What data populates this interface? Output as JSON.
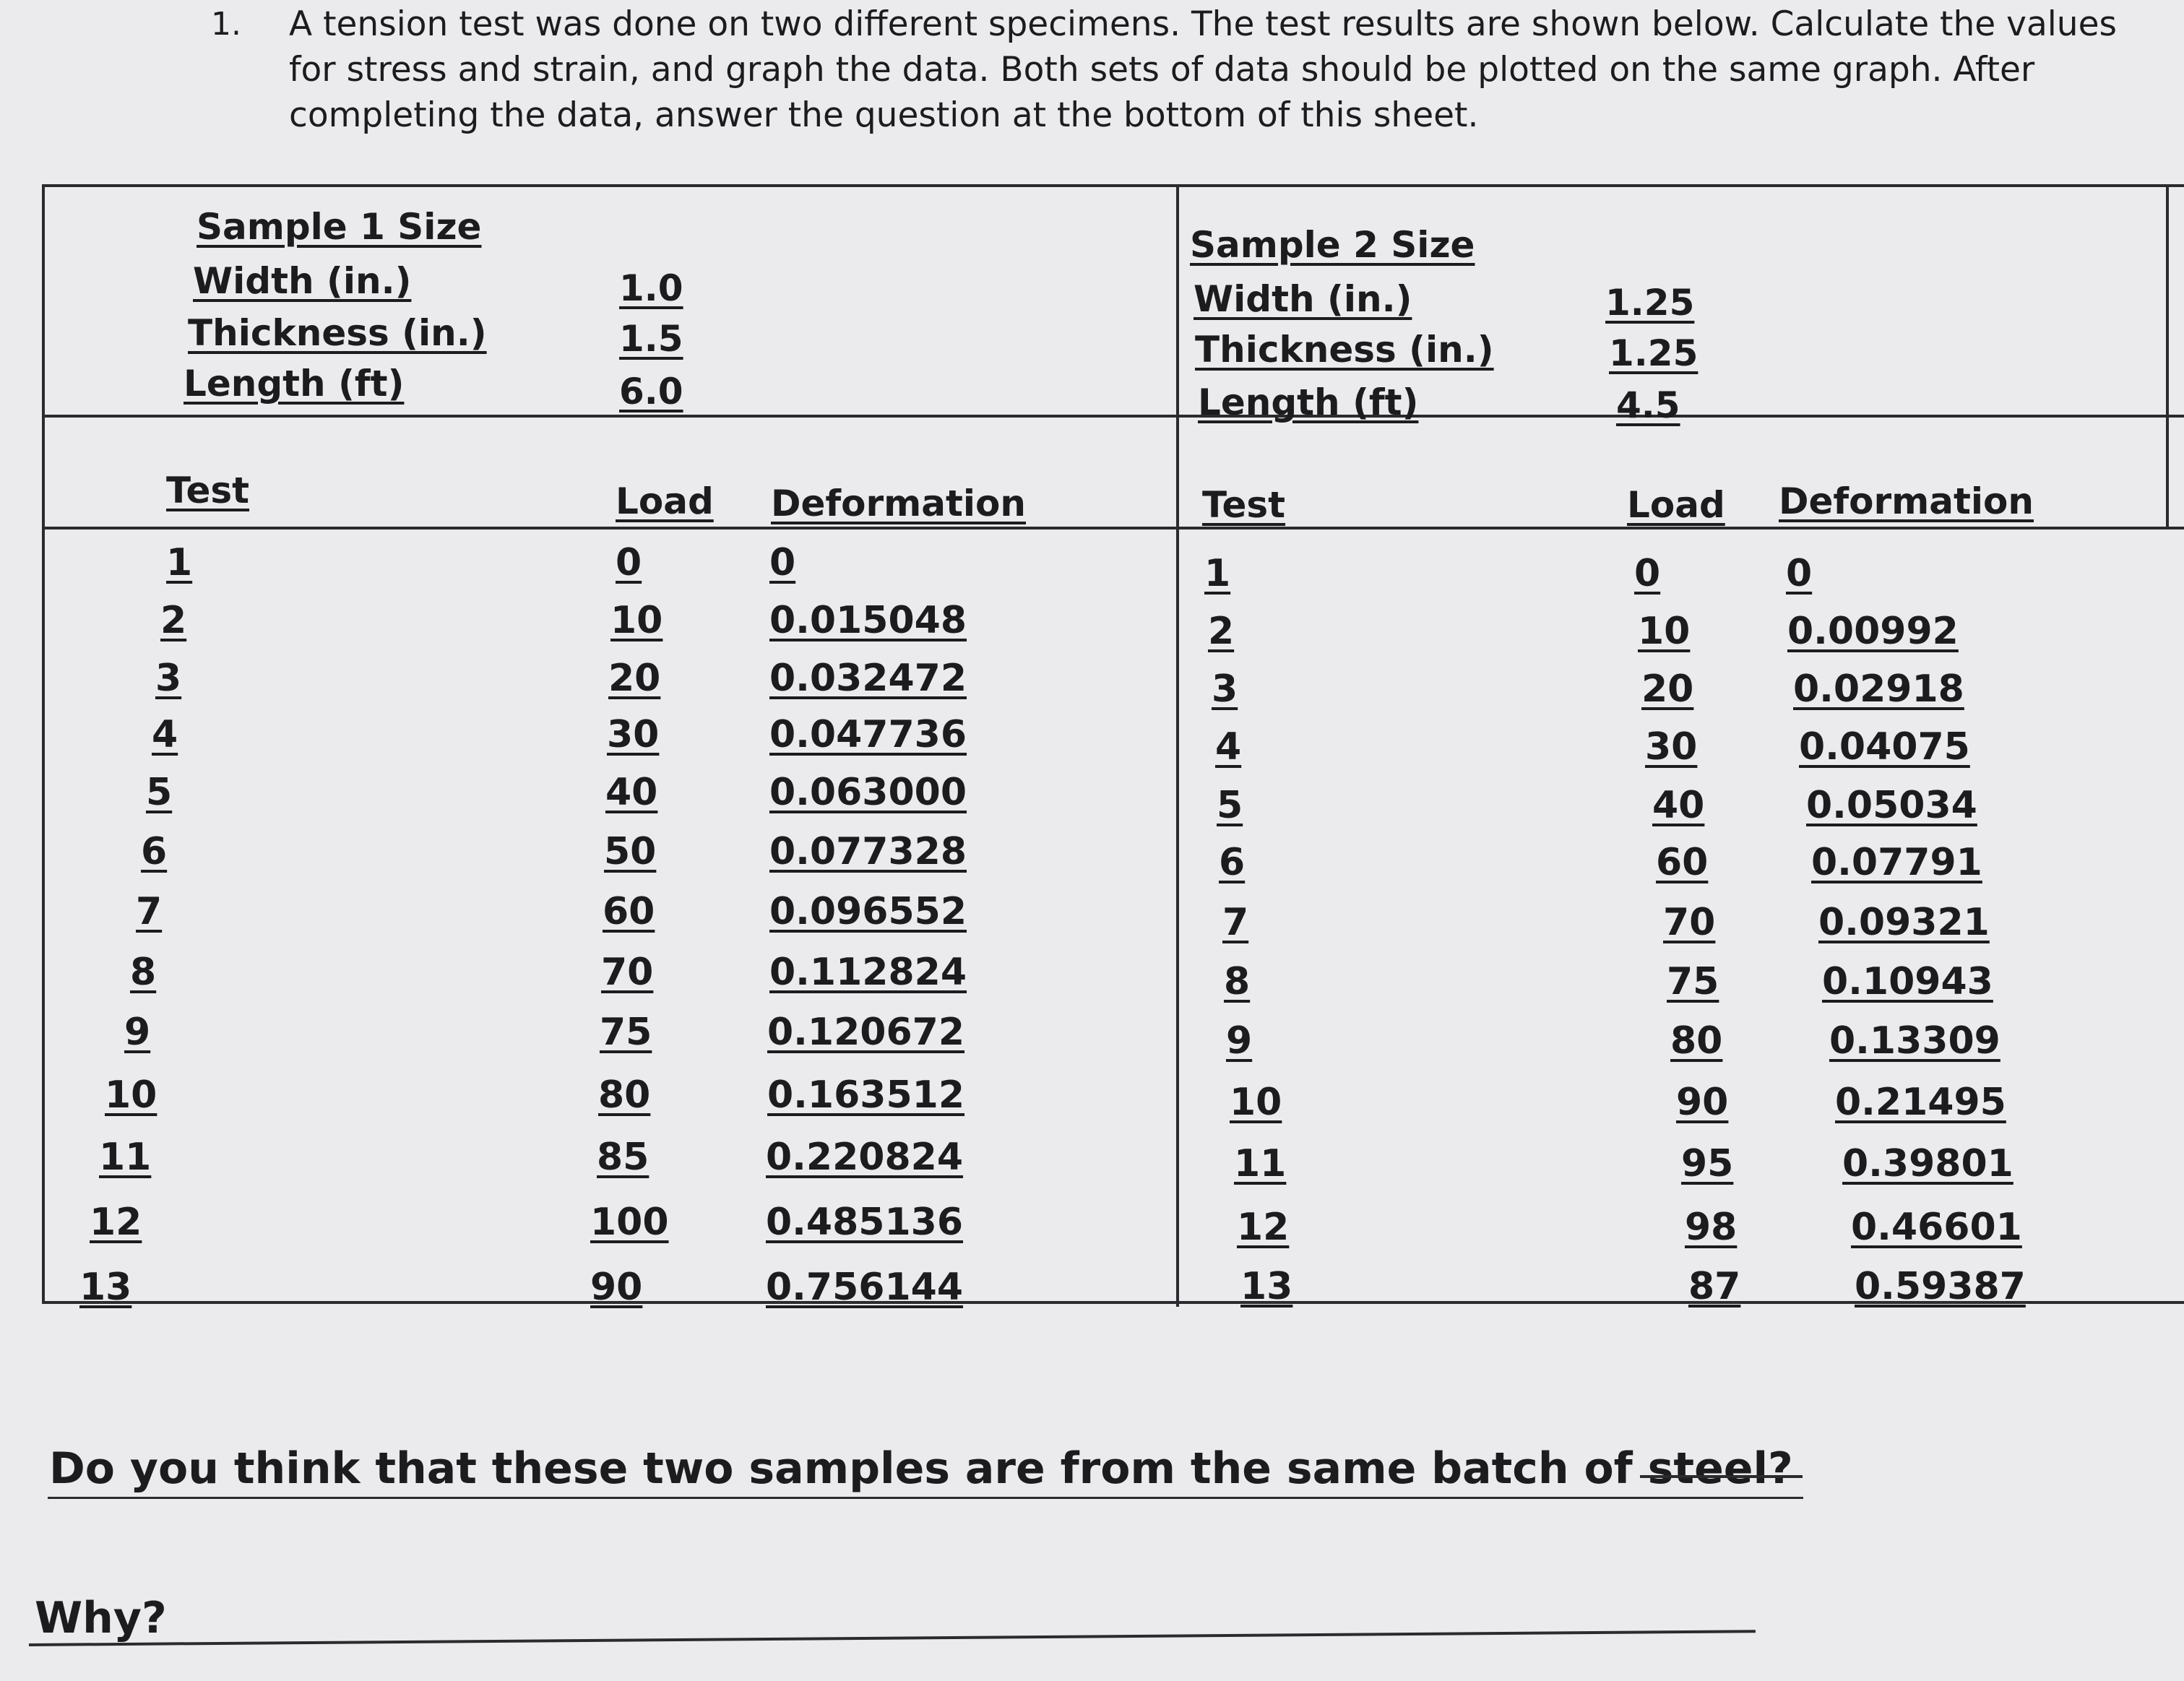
{
  "question": {
    "number": "1.",
    "text": "A tension test was done on two different specimens. The test results are shown below. Calculate the values for stress and strain, and graph the data. Both sets of data should be plotted on the same graph. After completing the data, answer the question at the bottom of this sheet."
  },
  "sample1": {
    "size_title": "Sample 1 Size",
    "width_label": "Width (in.)",
    "width": "1.0",
    "thickness_label": "Thickness (in.)",
    "thickness": "1.5",
    "length_label": "Length (ft)",
    "length": "6.0",
    "col_test": "Test",
    "col_load": "Load",
    "col_deformation": "Deformation",
    "rows": [
      {
        "test": "1",
        "load": "0",
        "deformation": "0"
      },
      {
        "test": "2",
        "load": "10",
        "deformation": "0.015048"
      },
      {
        "test": "3",
        "load": "20",
        "deformation": "0.032472"
      },
      {
        "test": "4",
        "load": "30",
        "deformation": "0.047736"
      },
      {
        "test": "5",
        "load": "40",
        "deformation": "0.063000"
      },
      {
        "test": "6",
        "load": "50",
        "deformation": "0.077328"
      },
      {
        "test": "7",
        "load": "60",
        "deformation": "0.096552"
      },
      {
        "test": "8",
        "load": "70",
        "deformation": "0.112824"
      },
      {
        "test": "9",
        "load": "75",
        "deformation": "0.120672"
      },
      {
        "test": "10",
        "load": "80",
        "deformation": "0.163512"
      },
      {
        "test": "11",
        "load": "85",
        "deformation": "0.220824"
      },
      {
        "test": "12",
        "load": "100",
        "deformation": "0.485136"
      },
      {
        "test": "13",
        "load": "90",
        "deformation": "0.756144"
      }
    ]
  },
  "sample2": {
    "size_title": "Sample 2 Size",
    "width_label": "Width (in.)",
    "width": "1.25",
    "thickness_label": "Thickness (in.)",
    "thickness": "1.25",
    "length_label": "Length (ft)",
    "length": "4.5",
    "col_test": "Test",
    "col_load": "Load",
    "col_deformation": "Deformation",
    "rows": [
      {
        "test": "1",
        "load": "0",
        "deformation": "0"
      },
      {
        "test": "2",
        "load": "10",
        "deformation": "0.00992"
      },
      {
        "test": "3",
        "load": "20",
        "deformation": "0.02918"
      },
      {
        "test": "4",
        "load": "30",
        "deformation": "0.04075"
      },
      {
        "test": "5",
        "load": "40",
        "deformation": "0.05034"
      },
      {
        "test": "6",
        "load": "60",
        "deformation": "0.07791"
      },
      {
        "test": "7",
        "load": "70",
        "deformation": "0.09321"
      },
      {
        "test": "8",
        "load": "75",
        "deformation": "0.10943"
      },
      {
        "test": "9",
        "load": "80",
        "deformation": "0.13309"
      },
      {
        "test": "10",
        "load": "90",
        "deformation": "0.21495"
      },
      {
        "test": "11",
        "load": "95",
        "deformation": "0.39801"
      },
      {
        "test": "12",
        "load": "98",
        "deformation": "0.46601"
      },
      {
        "test": "13",
        "load": "87",
        "deformation": "0.59387"
      }
    ]
  },
  "followup": {
    "same_batch_question": "Do you think that these two samples are from the same batch of steel?",
    "why_label": "Why?"
  }
}
